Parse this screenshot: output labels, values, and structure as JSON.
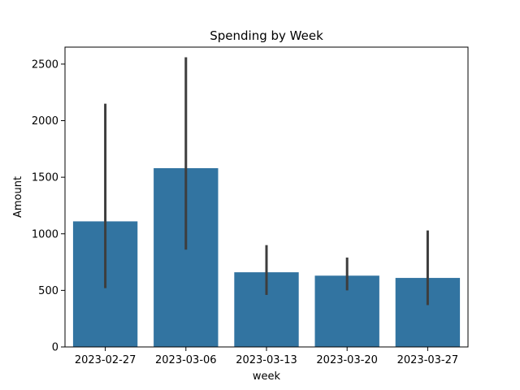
{
  "chart_data": {
    "type": "bar",
    "title": "Spending by Week",
    "xlabel": "week",
    "ylabel": "Amount",
    "categories": [
      "2023-02-27",
      "2023-03-06",
      "2023-03-13",
      "2023-03-20",
      "2023-03-27"
    ],
    "values": [
      1110,
      1580,
      660,
      630,
      610
    ],
    "error_low": [
      520,
      860,
      460,
      500,
      370
    ],
    "error_high": [
      2150,
      2560,
      900,
      790,
      1030
    ],
    "ylim": [
      0,
      2650
    ],
    "yticks": [
      0,
      500,
      1000,
      1500,
      2000,
      2500
    ],
    "grid": false,
    "bar_color": "#3274a1",
    "error_color": "#3d3d3d"
  }
}
